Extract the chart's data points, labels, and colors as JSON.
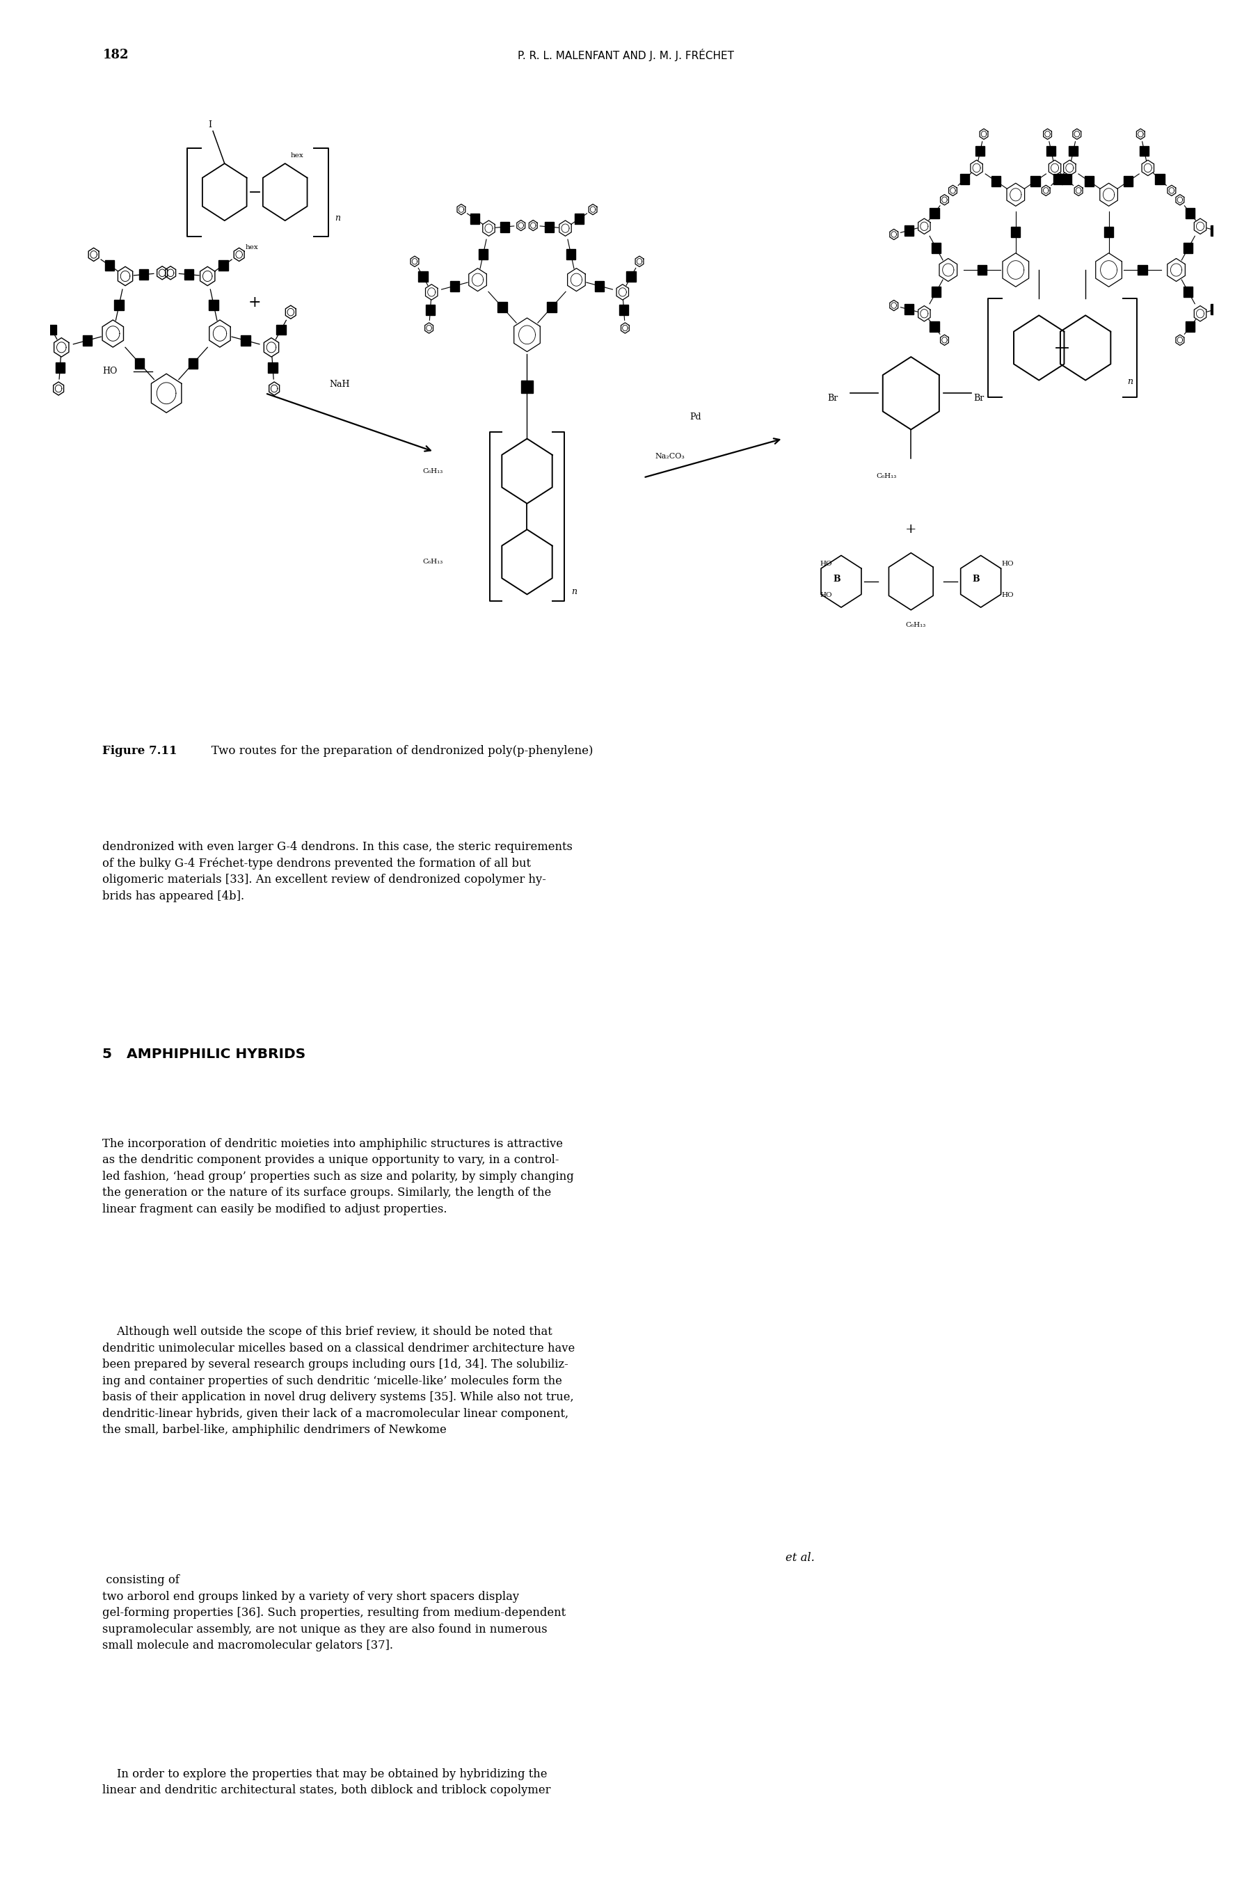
{
  "page_number": "182",
  "header_text": "P. R. L. MALENFANT AND J. M. J. FRÉCHET",
  "figure_caption_bold": "Figure 7.11",
  "figure_caption_rest": "   Two routes for the preparation of dendronized poly(p-phenylene)",
  "body_paragraph1": "dendronized with even larger G-4 dendrons. In this case, the steric requirements\nof the bulky G-4 Fréchet-type dendrons prevented the formation of all but\noligomeric materials [33]. An excellent review of dendronized copolymer hy-\nbrids has appeared [4b].",
  "section_heading": "5   AMPHIPHILIC HYBRIDS",
  "body_paragraph2": "The incorporation of dendritic moieties into amphiphilic structures is attractive\nas the dendritic component provides a unique opportunity to vary, in a control-\nled fashion, ‘head group’ properties such as size and polarity, by simply changing\nthe generation or the nature of its surface groups. Similarly, the length of the\nlinear fragment can easily be modified to adjust properties.",
  "body_paragraph3_pre": "    Although well outside the scope of this brief review, it should be noted that\ndendritic unimolecular micelles based on a classical dendrimer architecture have\nbeen prepared by several research groups including ours [1d, 34]. The solubiliz-\ning and container properties of such dendritic ‘micelle-like’ molecules form the\nbasis of their application in novel drug delivery systems [35]. While also not true,\ndendritic-linear hybrids, given their lack of a macromolecular linear component,\nthe small, barbel-like, amphiphilic dendrimers of Newkome ",
  "body_paragraph3_italic": "et al.",
  "body_paragraph3_post": " consisting of\ntwo arborol end groups linked by a variety of very short spacers display\ngel-forming properties [36]. Such properties, resulting from medium-dependent\nsupramolecular assembly, are not unique as they are also found in numerous\nsmall molecule and macromolecular gelators [37].",
  "body_paragraph4": "    In order to explore the properties that may be obtained by hybridizing the\nlinear and dendritic architectural states, both diblock and triblock copolymer",
  "bg_color": "#ffffff",
  "text_color": "#000000"
}
